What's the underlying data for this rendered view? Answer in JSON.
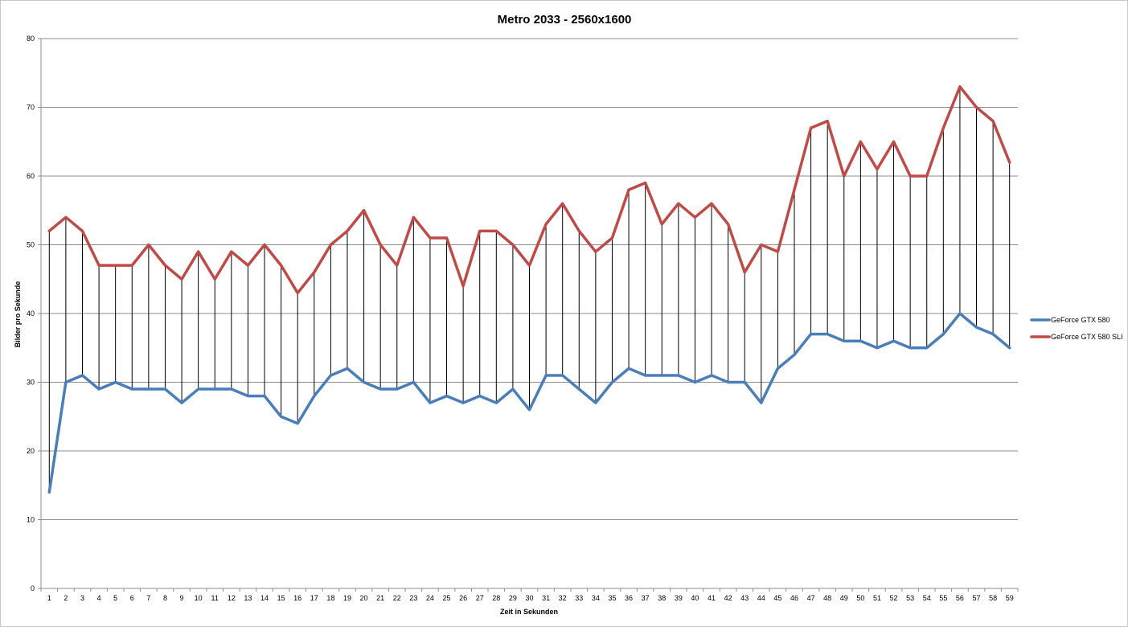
{
  "chart_data": {
    "type": "line",
    "title": "Metro 2033 - 2560x1600",
    "xlabel": "Zeit in Sekunden",
    "ylabel": "Bilder pro Sekunde",
    "ylim": [
      0,
      80
    ],
    "yticks": [
      0,
      10,
      20,
      30,
      40,
      50,
      60,
      70,
      80
    ],
    "grid": true,
    "legend_position": "right",
    "x": [
      1,
      2,
      3,
      4,
      5,
      6,
      7,
      8,
      9,
      10,
      11,
      12,
      13,
      14,
      15,
      16,
      17,
      18,
      19,
      20,
      21,
      22,
      23,
      24,
      25,
      26,
      27,
      28,
      29,
      30,
      31,
      32,
      33,
      34,
      35,
      36,
      37,
      38,
      39,
      40,
      41,
      42,
      43,
      44,
      45,
      46,
      47,
      48,
      49,
      50,
      51,
      52,
      53,
      54,
      55,
      56,
      57,
      58,
      59
    ],
    "series": [
      {
        "name": "GeForce GTX 580",
        "color": "#4a7ebb",
        "values": [
          14,
          30,
          31,
          29,
          30,
          29,
          29,
          29,
          27,
          29,
          29,
          29,
          28,
          28,
          25,
          24,
          28,
          31,
          32,
          30,
          29,
          29,
          30,
          27,
          28,
          27,
          28,
          27,
          29,
          26,
          31,
          31,
          29,
          27,
          30,
          32,
          31,
          31,
          31,
          30,
          31,
          30,
          30,
          27,
          32,
          34,
          37,
          37,
          36,
          36,
          35,
          36,
          35,
          35,
          37,
          40,
          38,
          37,
          35
        ]
      },
      {
        "name": "GeForce GTX 580 SLI",
        "color": "#be4b48",
        "values": [
          52,
          54,
          52,
          47,
          47,
          47,
          50,
          47,
          45,
          49,
          45,
          49,
          47,
          50,
          47,
          43,
          46,
          50,
          52,
          55,
          50,
          47,
          54,
          51,
          51,
          44,
          52,
          52,
          50,
          47,
          53,
          56,
          52,
          49,
          51,
          58,
          59,
          53,
          56,
          54,
          56,
          53,
          46,
          50,
          49,
          58,
          67,
          68,
          60,
          65,
          61,
          65,
          60,
          60,
          67,
          73,
          70,
          68,
          62
        ]
      }
    ],
    "drop_lines": true
  }
}
